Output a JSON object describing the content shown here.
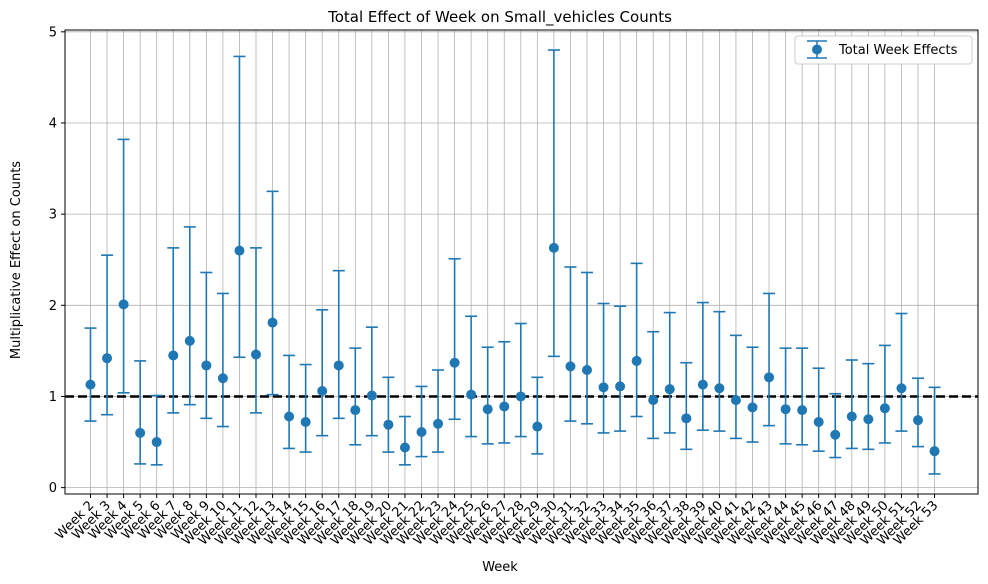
{
  "chart_data": {
    "type": "scatter",
    "subtype": "errorbar",
    "title": "Total Effect of Week on Small_vehicles Counts",
    "xlabel": "Week",
    "ylabel": "Multiplicative Effect on Counts",
    "ylim": [
      -0.07,
      5.02
    ],
    "yticks": [
      0,
      1,
      2,
      3,
      4,
      5
    ],
    "grid": true,
    "legend": {
      "position": "top-right",
      "entries": [
        "Total Week Effects"
      ]
    },
    "reference_line": {
      "y": 1,
      "style": "dashed",
      "color": "#000000"
    },
    "colors": {
      "series": "#1f77b4",
      "grid": "#b0b0b0",
      "reference": "#000000"
    },
    "categories": [
      "Week 2",
      "Week 3",
      "Week 4",
      "Week 5",
      "Week 6",
      "Week 7",
      "Week 8",
      "Week 9",
      "Week 10",
      "Week 11",
      "Week 12",
      "Week 13",
      "Week 14",
      "Week 15",
      "Week 16",
      "Week 17",
      "Week 18",
      "Week 19",
      "Week 20",
      "Week 21",
      "Week 22",
      "Week 23",
      "Week 24",
      "Week 25",
      "Week 26",
      "Week 27",
      "Week 28",
      "Week 29",
      "Week 30",
      "Week 31",
      "Week 32",
      "Week 33",
      "Week 34",
      "Week 35",
      "Week 36",
      "Week 37",
      "Week 38",
      "Week 39",
      "Week 40",
      "Week 41",
      "Week 42",
      "Week 43",
      "Week 44",
      "Week 45",
      "Week 46",
      "Week 47",
      "Week 48",
      "Week 49",
      "Week 50",
      "Week 51",
      "Week 52",
      "Week 53"
    ],
    "series": [
      {
        "name": "Total Week Effects",
        "values": [
          1.13,
          1.42,
          2.01,
          0.6,
          0.5,
          1.45,
          1.61,
          1.34,
          1.2,
          2.6,
          1.46,
          1.81,
          0.78,
          0.72,
          1.06,
          1.34,
          0.85,
          1.01,
          0.69,
          0.44,
          0.61,
          0.7,
          1.37,
          1.02,
          0.86,
          0.89,
          1.0,
          0.67,
          2.63,
          1.33,
          1.29,
          1.1,
          1.11,
          1.39,
          0.96,
          1.08,
          0.76,
          1.13,
          1.09,
          0.96,
          0.88,
          1.21,
          0.86,
          0.85,
          0.72,
          0.58,
          0.78,
          0.75,
          0.87,
          1.09,
          0.74,
          0.4
        ],
        "lower": [
          0.73,
          0.8,
          1.04,
          0.26,
          0.25,
          0.82,
          0.91,
          0.76,
          0.67,
          1.43,
          0.82,
          1.02,
          0.43,
          0.39,
          0.57,
          0.76,
          0.47,
          0.57,
          0.39,
          0.25,
          0.34,
          0.39,
          0.75,
          0.56,
          0.48,
          0.49,
          0.56,
          0.37,
          1.44,
          0.73,
          0.7,
          0.6,
          0.62,
          0.78,
          0.54,
          0.6,
          0.42,
          0.63,
          0.62,
          0.54,
          0.5,
          0.68,
          0.48,
          0.47,
          0.4,
          0.33,
          0.43,
          0.42,
          0.49,
          0.62,
          0.45,
          0.15
        ],
        "upper": [
          1.75,
          2.55,
          3.82,
          1.39,
          1.01,
          2.63,
          2.86,
          2.36,
          2.13,
          4.73,
          2.63,
          3.25,
          1.45,
          1.35,
          1.95,
          2.38,
          1.53,
          1.76,
          1.21,
          0.78,
          1.11,
          1.29,
          2.51,
          1.88,
          1.54,
          1.6,
          1.8,
          1.21,
          4.8,
          2.42,
          2.36,
          2.02,
          1.99,
          2.46,
          1.71,
          1.92,
          1.37,
          2.03,
          1.93,
          1.67,
          1.54,
          2.13,
          1.53,
          1.53,
          1.31,
          1.03,
          1.4,
          1.36,
          1.56,
          1.91,
          1.2,
          1.1
        ]
      }
    ]
  }
}
